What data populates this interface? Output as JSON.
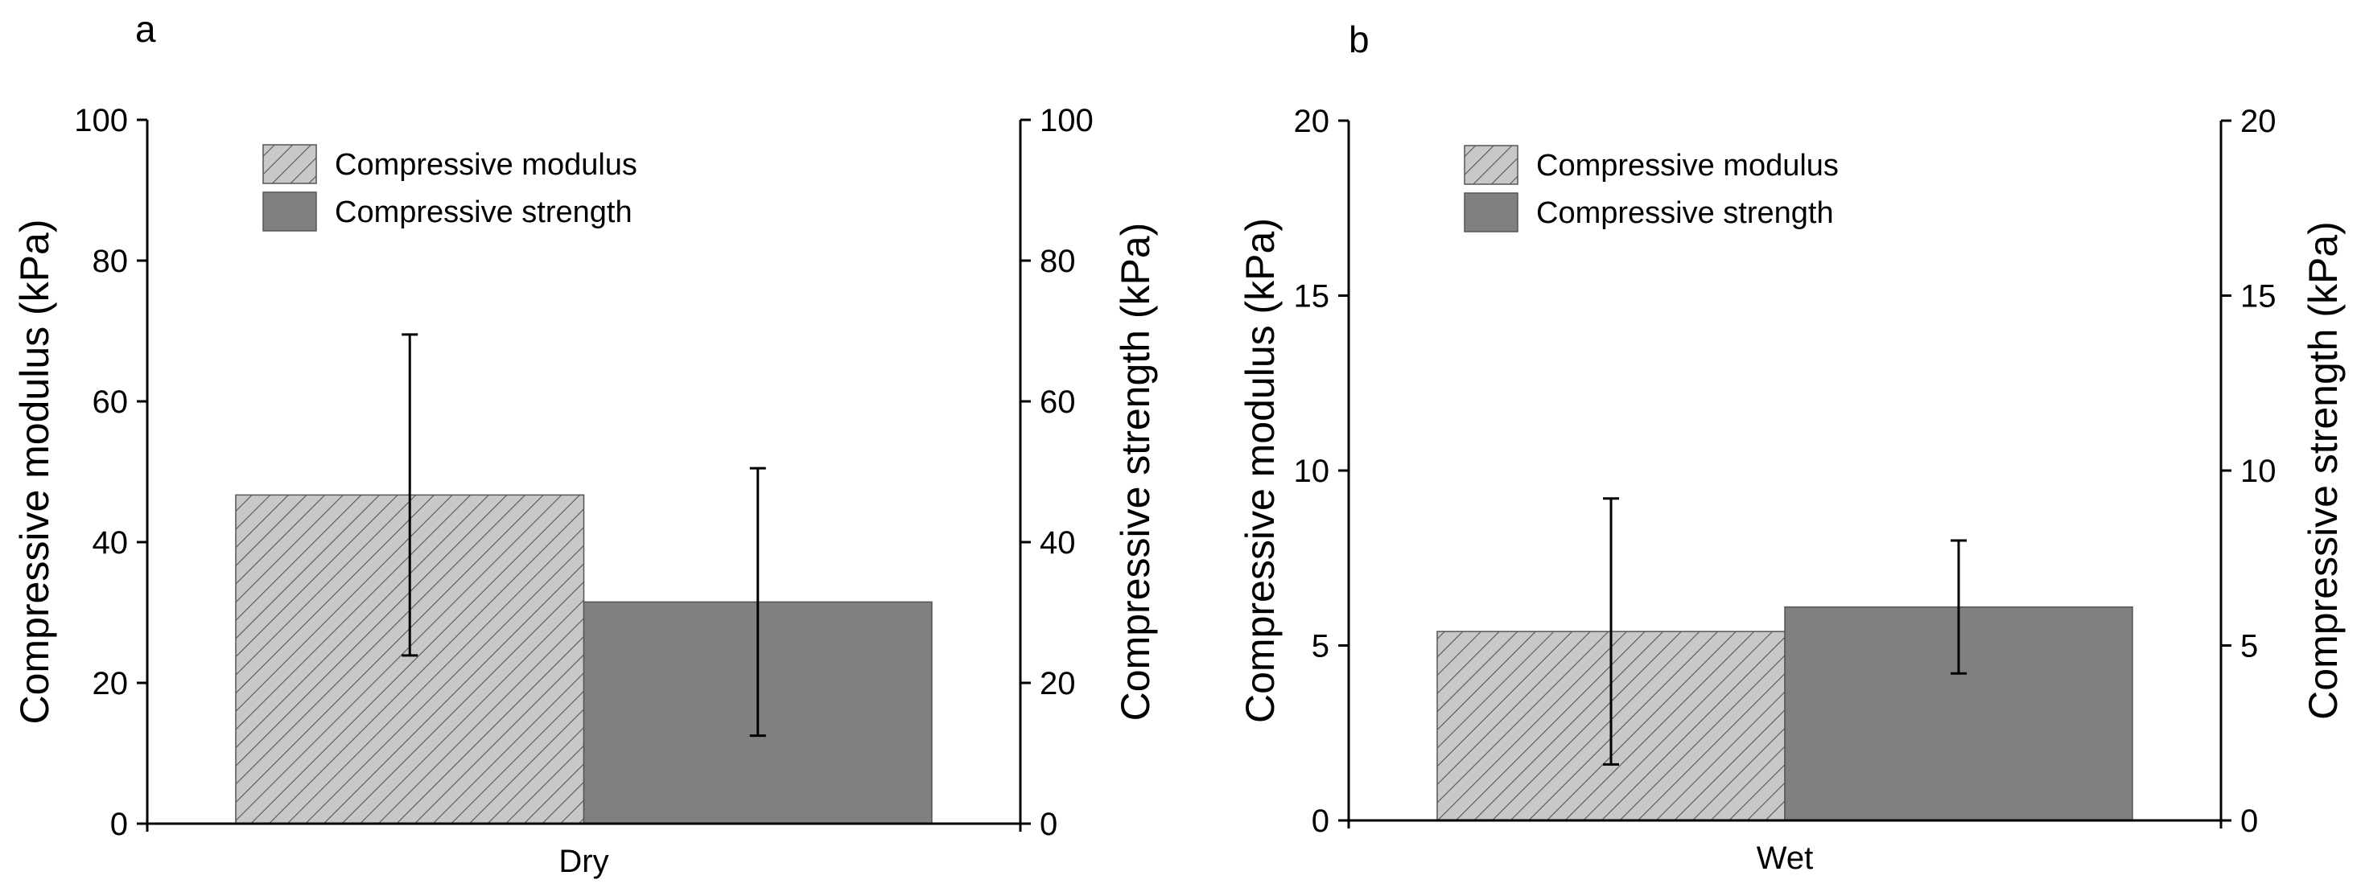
{
  "chart_data": [
    {
      "panel": "a",
      "type": "bar",
      "categories": [
        "Dry"
      ],
      "ylabel_left": "Compressive modulus (kPa)",
      "ylabel_right": "Compressive strength (kPa)",
      "ylim_left": [
        0,
        100
      ],
      "ylim_right": [
        0,
        100
      ],
      "yticks": [
        "0",
        "20",
        "40",
        "60",
        "80",
        "100"
      ],
      "grid": false,
      "legend_position": "top-left",
      "series": [
        {
          "name": "Compressive modulus",
          "axis": "left",
          "values": [
            46.7
          ],
          "error": [
            22.8
          ],
          "fill": "#c8c8c8",
          "pattern": "hatch"
        },
        {
          "name": "Compressive strength",
          "axis": "right",
          "values": [
            31.5
          ],
          "error": [
            19.0
          ],
          "fill": "#808080",
          "pattern": "solid"
        }
      ]
    },
    {
      "panel": "b",
      "type": "bar",
      "categories": [
        "Wet"
      ],
      "ylabel_left": "Compressive modulus (kPa)",
      "ylabel_right": "Compressive strength (kPa)",
      "ylim_left": [
        0,
        20
      ],
      "ylim_right": [
        0,
        20
      ],
      "yticks": [
        "0",
        "5",
        "10",
        "15",
        "20"
      ],
      "grid": false,
      "legend_position": "top-left",
      "series": [
        {
          "name": "Compressive modulus",
          "axis": "left",
          "values": [
            5.4
          ],
          "error": [
            3.8
          ],
          "fill": "#c8c8c8",
          "pattern": "hatch"
        },
        {
          "name": "Compressive strength",
          "axis": "right",
          "values": [
            6.1
          ],
          "error": [
            1.9
          ],
          "fill": "#808080",
          "pattern": "solid"
        }
      ]
    }
  ]
}
